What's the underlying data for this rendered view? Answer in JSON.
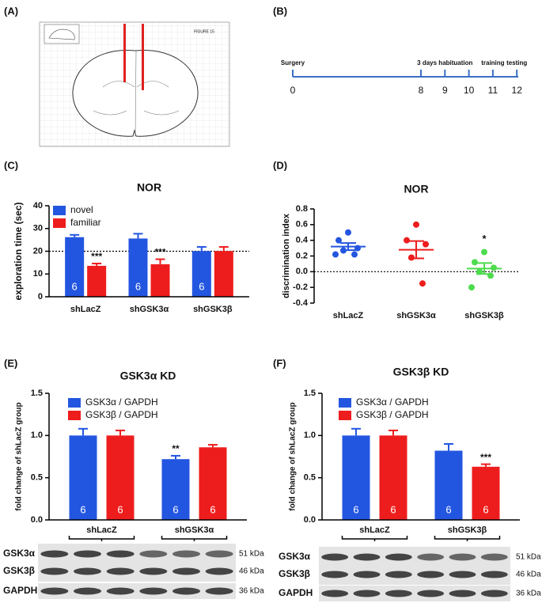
{
  "panel_labels": [
    "(A)",
    "(B)",
    "(C)",
    "(D)",
    "(E)",
    "(F)"
  ],
  "atlas": {
    "label": "FIGURE 15"
  },
  "timeline": {
    "ticks": [
      0,
      8,
      9,
      10,
      11,
      12
    ],
    "events": [
      {
        "label": "Surgery",
        "day": 0
      },
      {
        "label": "3 days habituation",
        "day": 9
      },
      {
        "label": "training",
        "day": 11
      },
      {
        "label": "testing",
        "day": 12
      }
    ]
  },
  "chart_data": [
    {
      "type": "bar",
      "title": "NOR",
      "ylabel": "exploration time (sec)",
      "categories": [
        "shLacZ",
        "shGSK3α",
        "shGSK3β"
      ],
      "series": [
        {
          "name": "novel",
          "color": "#2356e0",
          "values": [
            26.2,
            25.6,
            20.1
          ],
          "errors": [
            1.0,
            2.1,
            1.8
          ],
          "n": [
            6,
            6,
            6
          ]
        },
        {
          "name": "familiar",
          "color": "#ee1d1d",
          "values": [
            13.6,
            14.3,
            20.1
          ],
          "errors": [
            1.0,
            2.2,
            1.8
          ],
          "significance": [
            "***",
            "***",
            null
          ]
        }
      ],
      "ylim": [
        0,
        40
      ],
      "yticks": [
        0,
        10,
        20,
        30,
        40
      ],
      "reference_line": 20,
      "legend": "upper left"
    },
    {
      "type": "dot",
      "title": "NOR",
      "ylabel": "discrimination index",
      "categories": [
        "shLacZ",
        "shGSK3α",
        "shGSK3β"
      ],
      "colors": [
        "#2356e0",
        "#ee1d1d",
        "#4ddc4d"
      ],
      "values": [
        [
          0.5,
          0.4,
          0.3,
          0.27,
          0.22,
          0.22
        ],
        [
          0.6,
          0.4,
          0.35,
          0.18,
          -0.15
        ],
        [
          0.25,
          0.12,
          0.05,
          0.0,
          -0.05,
          -0.2
        ]
      ],
      "means": [
        0.32,
        0.28,
        0.04
      ],
      "errors": [
        0.045,
        0.11,
        0.07
      ],
      "significance": [
        null,
        null,
        "*"
      ],
      "ylim": [
        -0.4,
        0.8
      ],
      "yticks": [
        -0.4,
        -0.2,
        {
          "value": 0,
          "label": "0.0"
        },
        0.2,
        0.4,
        0.6,
        0.8
      ],
      "reference_line": 0
    },
    {
      "type": "bar",
      "title": "GSK3α KD",
      "ylabel": "fold change of shLacZ group",
      "categories": [
        "shLacZ",
        "shGSK3α"
      ],
      "series": [
        {
          "name": "GSK3α / GAPDH",
          "color": "#2356e0",
          "values": [
            1.0,
            0.72
          ],
          "errors": [
            0.08,
            0.04
          ],
          "n": [
            6,
            6
          ],
          "significance": [
            null,
            "**"
          ]
        },
        {
          "name": "GSK3β / GAPDH",
          "color": "#ee1d1d",
          "values": [
            1.0,
            0.86
          ],
          "errors": [
            0.06,
            0.03
          ],
          "n": [
            6,
            6
          ]
        }
      ],
      "ylim": [
        0,
        1.5
      ],
      "yticks": [
        {
          "value": 0,
          "label": "0.0"
        },
        0.5,
        {
          "value": 1,
          "label": "1.0"
        },
        1.5
      ],
      "legend": "upper left"
    },
    {
      "type": "bar",
      "title": "GSK3β KD",
      "ylabel": "fold change of shLacZ group",
      "categories": [
        "shLacZ",
        "shGSK3β"
      ],
      "series": [
        {
          "name": "GSK3α / GAPDH",
          "color": "#2356e0",
          "values": [
            1.0,
            0.82
          ],
          "errors": [
            0.08,
            0.08
          ],
          "n": [
            6,
            6
          ]
        },
        {
          "name": "GSK3β / GAPDH",
          "color": "#ee1d1d",
          "values": [
            1.0,
            0.63
          ],
          "errors": [
            0.06,
            0.03
          ],
          "n": [
            6,
            6
          ],
          "significance": [
            null,
            "***"
          ]
        }
      ],
      "ylim": [
        0,
        1.5
      ],
      "yticks": [
        {
          "value": 0,
          "label": "0.0"
        },
        0.5,
        {
          "value": 1,
          "label": "1.0"
        },
        1.5
      ],
      "legend": "upper left"
    }
  ],
  "blots": [
    {
      "rows": [
        "GSK3α",
        "GSK3β",
        "GAPDH"
      ],
      "sizes": [
        "51 kDa",
        "46 kDa",
        "36 kDa"
      ]
    },
    {
      "rows": [
        "GSK3α",
        "GSK3β",
        "GAPDH"
      ],
      "sizes": [
        "51 kDa",
        "46 kDa",
        "36 kDa"
      ]
    }
  ]
}
